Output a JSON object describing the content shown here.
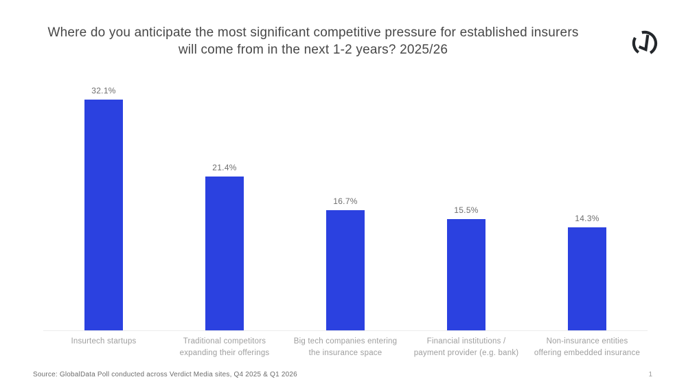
{
  "header": {
    "title_lines": [
      "Where do you anticipate the most significant competitive pressure for established insurers",
      "will come from in the next 1-2 years? 2025/26"
    ],
    "logo_icon": "globaldata-logo",
    "logo_color": "#23272b"
  },
  "chart_data": {
    "type": "bar",
    "title": "Where do you anticipate the most significant competitive pressure for established insurers will come from in the next 1-2 years? 2025/26",
    "categories": [
      "Insurtech startups",
      "Traditional competitors expanding their offerings",
      "Big tech companies entering the insurance space",
      "Financial institutions / payment provider (e.g. bank)",
      "Non-insurance entities offering embedded insurance"
    ],
    "values": [
      32.1,
      21.4,
      16.7,
      15.5,
      14.3
    ],
    "value_labels": [
      "32.1%",
      "21.4%",
      "16.7%",
      "15.5%",
      "14.3%"
    ],
    "unit": "%",
    "bar_color": "#2B41E0",
    "ylim": [
      0,
      35
    ],
    "grid": false,
    "legend": "none",
    "xlabel": "",
    "ylabel": ""
  },
  "footer": {
    "source": "Source: GlobalData Poll conducted across Verdict Media sites, Q4 2025 & Q1 2026",
    "page_number": "1"
  }
}
